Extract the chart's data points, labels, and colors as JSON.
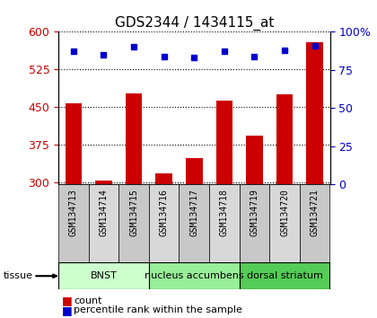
{
  "title": "GDS2344 / 1434115_at",
  "samples": [
    "GSM134713",
    "GSM134714",
    "GSM134715",
    "GSM134716",
    "GSM134717",
    "GSM134718",
    "GSM134719",
    "GSM134720",
    "GSM134721"
  ],
  "counts": [
    457,
    303,
    477,
    317,
    348,
    462,
    393,
    475,
    580
  ],
  "percentile_ranks": [
    87,
    85,
    90,
    84,
    83,
    87,
    84,
    88,
    91
  ],
  "ylim_left": [
    295,
    600
  ],
  "ylim_right": [
    0,
    100
  ],
  "yticks_left": [
    300,
    375,
    450,
    525,
    600
  ],
  "yticks_right": [
    0,
    25,
    50,
    75,
    100
  ],
  "bar_color": "#cc0000",
  "dot_color": "#0000cc",
  "tissue_groups": [
    {
      "label": "BNST",
      "start": 0,
      "end": 3,
      "color": "#ccffcc"
    },
    {
      "label": "nucleus accumbens",
      "start": 3,
      "end": 6,
      "color": "#99ee99"
    },
    {
      "label": "dorsal striatum",
      "start": 6,
      "end": 9,
      "color": "#55cc55"
    }
  ],
  "legend_count_label": "count",
  "legend_pct_label": "percentile rank within the sample",
  "tissue_label": "tissue",
  "bar_width": 0.55,
  "tick_box_color_even": "#c8c8c8",
  "tick_box_color_odd": "#d8d8d8"
}
